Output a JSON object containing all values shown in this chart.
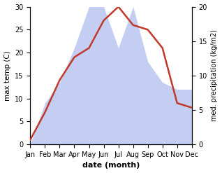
{
  "months": [
    "Jan",
    "Feb",
    "Mar",
    "Apr",
    "May",
    "Jun",
    "Jul",
    "Aug",
    "Sep",
    "Oct",
    "Nov",
    "Dec"
  ],
  "month_positions": [
    0,
    1,
    2,
    3,
    4,
    5,
    6,
    7,
    8,
    9,
    10,
    11
  ],
  "temperature": [
    1,
    7,
    14,
    19,
    21,
    27,
    30,
    26,
    25,
    21,
    9,
    8
  ],
  "precipitation": [
    0,
    6,
    9,
    14,
    20,
    20,
    14,
    20,
    12,
    9,
    8,
    8
  ],
  "temp_color": "#c0392b",
  "precip_color": "#b0bef0",
  "temp_ylim": [
    0,
    30
  ],
  "precip_ylim": [
    0,
    20
  ],
  "xlabel": "date (month)",
  "ylabel_left": "max temp (C)",
  "ylabel_right": "med. precipitation (kg/m2)",
  "fig_width": 3.18,
  "fig_height": 2.47,
  "dpi": 100
}
